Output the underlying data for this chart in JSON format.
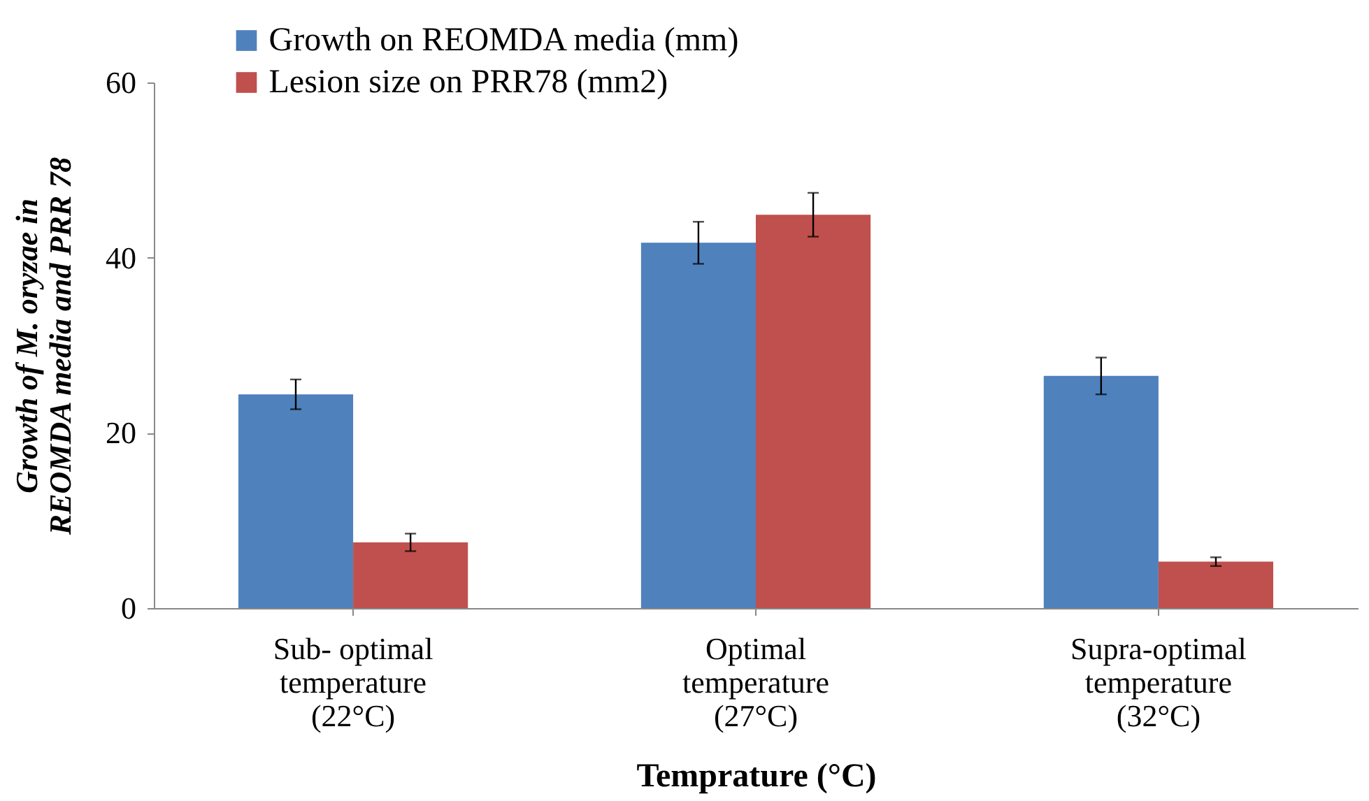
{
  "chart_data": {
    "type": "bar",
    "xlabel": "Temprature (°C)",
    "ylabel": "Growth of M. oryzae in REOMDA media and PRR 78",
    "categories": [
      "Sub- optimal temperature (22°C)",
      "Optimal temperature (27°C)",
      "Supra-optimal temperature (32°C)"
    ],
    "series": [
      {
        "name": "Growth on REOMDA media (mm)",
        "color": "#4f81bd",
        "values": [
          24.4,
          41.7,
          26.5
        ],
        "errors": [
          1.7,
          2.4,
          2.1
        ]
      },
      {
        "name": "Lesion size on PRR78 (mm2)",
        "color": "#c0504d",
        "values": [
          7.5,
          44.9,
          5.3
        ],
        "errors": [
          1.0,
          2.5,
          0.5
        ]
      }
    ],
    "ylim": [
      0,
      60
    ],
    "yticks": [
      0,
      20,
      40,
      60
    ],
    "grid": false,
    "legend": "top left"
  }
}
